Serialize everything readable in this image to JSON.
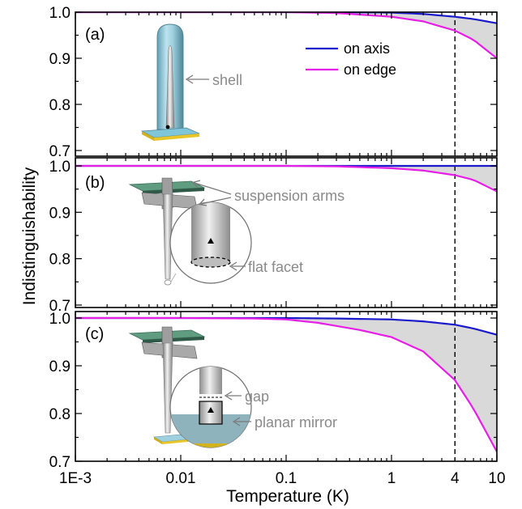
{
  "chart_data": {
    "type": "line",
    "xlabel": "Temperature (K)",
    "ylabel": "Indistinguishability",
    "xscale": "log",
    "xlim": [
      0.001,
      10
    ],
    "x_ticks": [
      {
        "value": 0.001,
        "label": "1E-3"
      },
      {
        "value": 0.01,
        "label": "0.01"
      },
      {
        "value": 0.1,
        "label": "0.1"
      },
      {
        "value": 1,
        "label": "1"
      },
      {
        "value": 4,
        "label": "4"
      },
      {
        "value": 10,
        "label": "10"
      }
    ],
    "vertical_dashed_line_x": 4,
    "legend": {
      "placement": "top-right",
      "entries": [
        "on axis",
        "on edge"
      ]
    },
    "colors": {
      "on_axis": "#1a1acc",
      "on_edge": "#e61ee6",
      "fill": "#d9d9d9"
    },
    "panels": [
      {
        "label": "(a)",
        "ylim": [
          0.7,
          1.0
        ],
        "yticks": [
          "0.7",
          "0.8",
          "0.9",
          "1.0"
        ],
        "annotations": [
          {
            "text": "shell"
          }
        ],
        "series": [
          {
            "name": "on axis",
            "x": [
              0.001,
              0.01,
              0.1,
              0.3,
              1,
              2,
              4,
              6,
              10
            ],
            "y": [
              1.0,
              1.0,
              1.0,
              1.0,
              0.999,
              0.996,
              0.99,
              0.985,
              0.976
            ]
          },
          {
            "name": "on edge",
            "x": [
              0.001,
              0.01,
              0.1,
              0.3,
              1,
              2,
              4,
              6,
              10
            ],
            "y": [
              1.0,
              1.0,
              1.0,
              0.998,
              0.99,
              0.98,
              0.96,
              0.94,
              0.9
            ]
          }
        ]
      },
      {
        "label": "(b)",
        "ylim": [
          0.7,
          1.02
        ],
        "yticks": [
          "0.7",
          "0.8",
          "0.9",
          "1.0"
        ],
        "annotations": [
          {
            "text": "suspension arms"
          },
          {
            "text": "flat facet"
          }
        ],
        "series": [
          {
            "name": "on axis",
            "x": [
              0.001,
              0.01,
              0.1,
              1,
              4,
              10
            ],
            "y": [
              1.0,
              1.0,
              1.0,
              1.0,
              1.0,
              1.0
            ]
          },
          {
            "name": "on edge",
            "x": [
              0.001,
              0.01,
              0.1,
              0.3,
              1,
              2,
              4,
              6,
              10
            ],
            "y": [
              1.0,
              1.0,
              1.0,
              0.999,
              0.995,
              0.99,
              0.98,
              0.97,
              0.945
            ]
          }
        ]
      },
      {
        "label": "(c)",
        "ylim": [
          0.7,
          1.02
        ],
        "yticks": [
          "0.7",
          "0.8",
          "0.9",
          "1.0"
        ],
        "annotations": [
          {
            "text": "gap"
          },
          {
            "text": "planar mirror"
          }
        ],
        "series": [
          {
            "name": "on axis",
            "x": [
              0.001,
              0.01,
              0.1,
              0.3,
              1,
              2,
              4,
              6,
              10
            ],
            "y": [
              1.0,
              1.0,
              1.0,
              0.999,
              0.997,
              0.993,
              0.986,
              0.978,
              0.965
            ]
          },
          {
            "name": "on edge",
            "x": [
              0.001,
              0.01,
              0.05,
              0.1,
              0.2,
              0.5,
              1,
              2,
              4,
              6,
              10
            ],
            "y": [
              1.0,
              1.0,
              0.999,
              0.997,
              0.99,
              0.975,
              0.96,
              0.93,
              0.87,
              0.81,
              0.72
            ]
          }
        ]
      }
    ]
  }
}
